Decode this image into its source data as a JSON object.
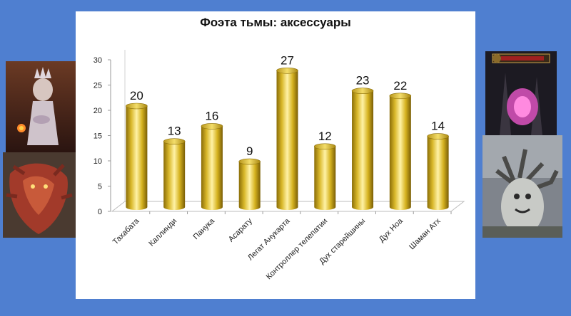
{
  "chart_data": {
    "type": "bar",
    "title": "Фоэта тьмы: аксессуары",
    "categories": [
      "Тахабата",
      "Каллинди",
      "Панука",
      "Асарату",
      "Легат Анукарта",
      "Контроллер телепатии",
      "Дух старейшины",
      "Дух Ноа",
      "Шаман Атх"
    ],
    "values": [
      20,
      13,
      16,
      9,
      27,
      12,
      23,
      22,
      14
    ],
    "ylim": [
      0,
      30
    ],
    "yticks": [
      0,
      5,
      10,
      15,
      20,
      25,
      30
    ],
    "grid": false,
    "legend": "none",
    "bar_style": "3d-cylinder",
    "bar_color": "#c9a81e"
  },
  "slide": {
    "background": "#4f7fd0",
    "panel_color": "#ffffff"
  }
}
